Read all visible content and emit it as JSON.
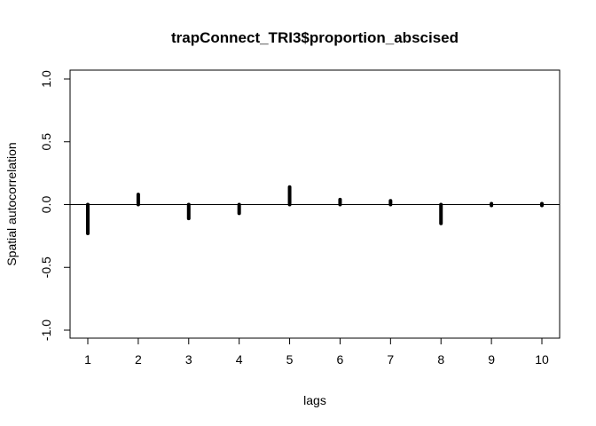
{
  "chart_data": {
    "type": "bar",
    "title": "trapConnect_TRI3$proportion_abscised",
    "xlabel": "lags",
    "ylabel": "Spatial autocorrelation",
    "x": [
      1,
      2,
      3,
      4,
      5,
      6,
      7,
      8,
      9,
      10
    ],
    "values": [
      -0.23,
      0.08,
      -0.11,
      -0.07,
      0.14,
      0.04,
      0.03,
      -0.15,
      -0.005,
      0.005
    ],
    "xlim": [
      1,
      10
    ],
    "ylim": [
      -1.0,
      1.0
    ],
    "x_ticks": [
      "1",
      "2",
      "3",
      "4",
      "5",
      "6",
      "7",
      "8",
      "9",
      "10"
    ],
    "y_ticks": [
      "-1.0",
      "-0.5",
      "0.0",
      "0.5",
      "1.0"
    ],
    "y_tick_values": [
      -1.0,
      -0.5,
      0.0,
      0.5,
      1.0
    ],
    "reference_line": 0,
    "grid": false,
    "legend": "none",
    "bar_color": "#000000"
  }
}
